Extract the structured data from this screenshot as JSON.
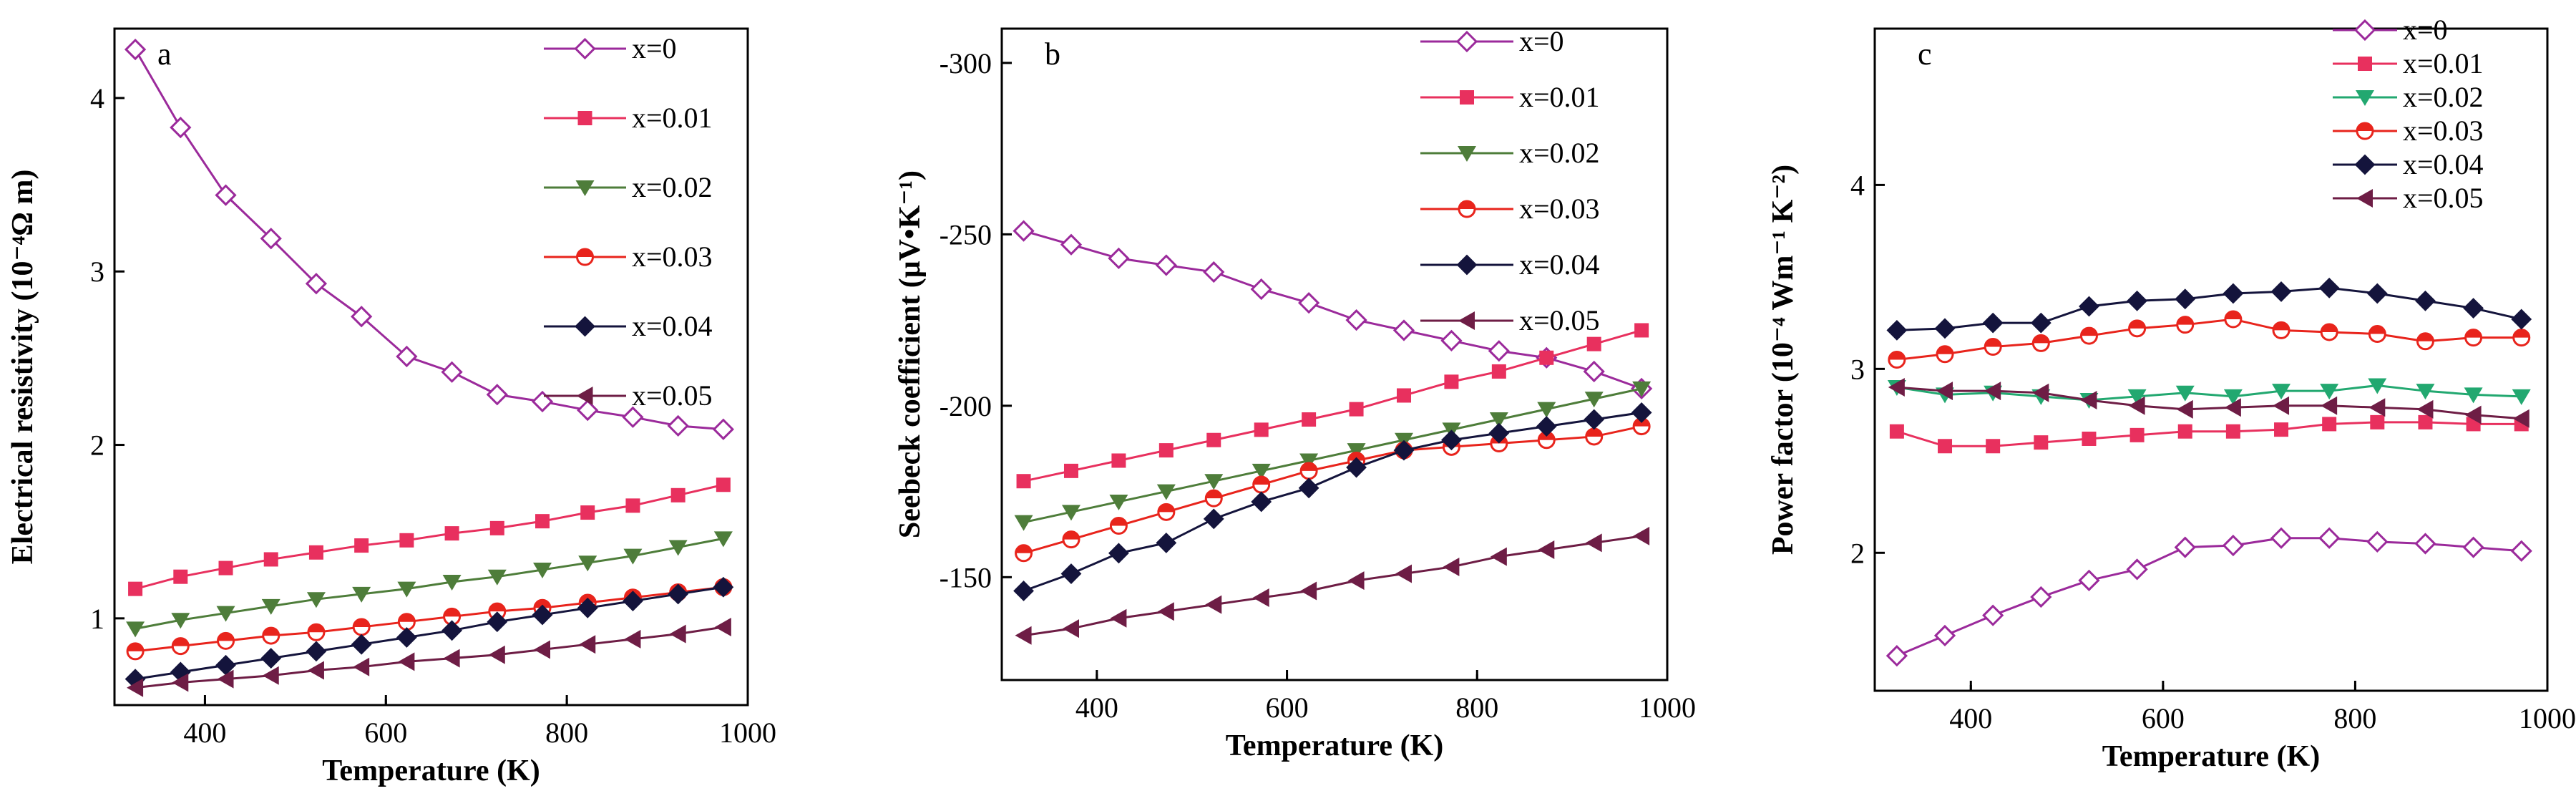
{
  "chart_data": [
    {
      "type": "line",
      "panel_label": "a",
      "title": "",
      "xlabel": "Temperature (K)",
      "ylabel": "Electrical resistivity (10⁻⁴Ω m)",
      "xlim": [
        300,
        1000
      ],
      "ylim": [
        0.5,
        4.4
      ],
      "y_reversed": false,
      "x_ticks": [
        400,
        600,
        800,
        1000
      ],
      "y_ticks": [
        1,
        2,
        3,
        4
      ],
      "legend_position": "top-right",
      "x": [
        323,
        373,
        423,
        473,
        523,
        573,
        623,
        673,
        723,
        773,
        823,
        873,
        923,
        973
      ],
      "series": [
        {
          "name": "x=0",
          "color": "#9b2a9b",
          "marker": "diamond-open",
          "values": [
            4.28,
            3.83,
            3.44,
            3.19,
            2.93,
            2.74,
            2.51,
            2.42,
            2.29,
            2.25,
            2.2,
            2.16,
            2.11,
            2.09
          ]
        },
        {
          "name": "x=0.01",
          "color": "#e8305e",
          "marker": "square",
          "values": [
            1.17,
            1.24,
            1.29,
            1.34,
            1.38,
            1.42,
            1.45,
            1.49,
            1.52,
            1.56,
            1.61,
            1.65,
            1.71,
            1.77
          ]
        },
        {
          "name": "x=0.02",
          "color": "#4e7d3a",
          "marker": "triangle-down",
          "values": [
            0.94,
            0.99,
            1.03,
            1.07,
            1.11,
            1.14,
            1.17,
            1.21,
            1.24,
            1.28,
            1.32,
            1.36,
            1.41,
            1.46
          ]
        },
        {
          "name": "x=0.03",
          "color": "#e8241c",
          "marker": "circle-half",
          "values": [
            0.81,
            0.84,
            0.87,
            0.9,
            0.92,
            0.95,
            0.98,
            1.01,
            1.04,
            1.06,
            1.09,
            1.12,
            1.15,
            1.18
          ]
        },
        {
          "name": "x=0.04",
          "color": "#14143c",
          "marker": "diamond",
          "values": [
            0.65,
            0.69,
            0.73,
            0.77,
            0.81,
            0.85,
            0.89,
            0.93,
            0.98,
            1.02,
            1.06,
            1.1,
            1.14,
            1.18
          ]
        },
        {
          "name": "x=0.05",
          "color": "#6e1d45",
          "marker": "triangle-left",
          "values": [
            0.6,
            0.63,
            0.65,
            0.67,
            0.7,
            0.72,
            0.75,
            0.77,
            0.79,
            0.82,
            0.85,
            0.88,
            0.91,
            0.95
          ]
        }
      ]
    },
    {
      "type": "line",
      "panel_label": "b",
      "title": "",
      "xlabel": "Temperature (K)",
      "ylabel": "Seebeck coefficient (μV•K⁻¹)",
      "xlim": [
        300,
        1000
      ],
      "ylim": [
        -310,
        -120
      ],
      "y_reversed": true,
      "x_ticks": [
        400,
        600,
        800,
        1000
      ],
      "y_ticks": [
        -300,
        -250,
        -200,
        -150
      ],
      "legend_position": "top-right",
      "x": [
        323,
        373,
        423,
        473,
        523,
        573,
        623,
        673,
        723,
        773,
        823,
        873,
        923,
        973
      ],
      "series": [
        {
          "name": "x=0",
          "color": "#9b2a9b",
          "marker": "diamond-open",
          "values": [
            -251,
            -247,
            -243,
            -241,
            -239,
            -234,
            -230,
            -225,
            -222,
            -219,
            -216,
            -214,
            -210,
            -205
          ]
        },
        {
          "name": "x=0.01",
          "color": "#e8305e",
          "marker": "square",
          "values": [
            -178,
            -181,
            -184,
            -187,
            -190,
            -193,
            -196,
            -199,
            -203,
            -207,
            -210,
            -214,
            -218,
            -222
          ]
        },
        {
          "name": "x=0.02",
          "color": "#4e7d3a",
          "marker": "triangle-down",
          "values": [
            -166,
            -169,
            -172,
            -175,
            -178,
            -181,
            -184,
            -187,
            -190,
            -193,
            -196,
            -199,
            -202,
            -205
          ]
        },
        {
          "name": "x=0.03",
          "color": "#e8241c",
          "marker": "circle-half",
          "values": [
            -157,
            -161,
            -165,
            -169,
            -173,
            -177,
            -181,
            -184,
            -187,
            -188,
            -189,
            -190,
            -191,
            -194
          ]
        },
        {
          "name": "x=0.04",
          "color": "#14143c",
          "marker": "diamond",
          "values": [
            -146,
            -151,
            -157,
            -160,
            -167,
            -172,
            -176,
            -182,
            -187,
            -190,
            -192,
            -194,
            -196,
            -198
          ]
        },
        {
          "name": "x=0.05",
          "color": "#6e1d45",
          "marker": "triangle-left",
          "values": [
            -133,
            -135,
            -138,
            -140,
            -142,
            -144,
            -146,
            -149,
            -151,
            -153,
            -156,
            -158,
            -160,
            -162
          ]
        }
      ]
    },
    {
      "type": "line",
      "panel_label": "c",
      "title": "",
      "xlabel": "Temperature (K)",
      "ylabel": "Power factor (10⁻⁴ Wm⁻¹ K⁻²)",
      "xlim": [
        300,
        1000
      ],
      "ylim": [
        1.25,
        4.85
      ],
      "y_reversed": false,
      "x_ticks": [
        400,
        600,
        800,
        1000
      ],
      "y_ticks": [
        2,
        3,
        4
      ],
      "legend_position": "top-right",
      "x": [
        323,
        373,
        423,
        473,
        523,
        573,
        623,
        673,
        723,
        773,
        823,
        873,
        923,
        973
      ],
      "series": [
        {
          "name": "x=0",
          "color": "#9b2a9b",
          "marker": "diamond-open",
          "values": [
            1.44,
            1.55,
            1.66,
            1.76,
            1.85,
            1.91,
            2.03,
            2.04,
            2.08,
            2.08,
            2.06,
            2.05,
            2.03,
            2.01
          ]
        },
        {
          "name": "x=0.01",
          "color": "#e8305e",
          "marker": "square",
          "values": [
            2.66,
            2.58,
            2.58,
            2.6,
            2.62,
            2.64,
            2.66,
            2.66,
            2.67,
            2.7,
            2.71,
            2.71,
            2.7,
            2.7
          ]
        },
        {
          "name": "x=0.02",
          "color": "#22a870",
          "marker": "triangle-down",
          "values": [
            2.9,
            2.86,
            2.87,
            2.85,
            2.83,
            2.85,
            2.87,
            2.85,
            2.88,
            2.88,
            2.91,
            2.88,
            2.86,
            2.85
          ]
        },
        {
          "name": "x=0.03",
          "color": "#e8241c",
          "marker": "circle-half",
          "values": [
            3.05,
            3.08,
            3.12,
            3.14,
            3.18,
            3.22,
            3.24,
            3.27,
            3.21,
            3.2,
            3.19,
            3.15,
            3.17,
            3.17
          ]
        },
        {
          "name": "x=0.04",
          "color": "#14143c",
          "marker": "diamond",
          "values": [
            3.21,
            3.22,
            3.25,
            3.25,
            3.34,
            3.37,
            3.38,
            3.41,
            3.42,
            3.44,
            3.41,
            3.37,
            3.33,
            3.27
          ]
        },
        {
          "name": "x=0.05",
          "color": "#6e1d45",
          "marker": "triangle-left",
          "values": [
            2.9,
            2.88,
            2.88,
            2.87,
            2.83,
            2.8,
            2.78,
            2.79,
            2.8,
            2.8,
            2.79,
            2.78,
            2.75,
            2.73
          ]
        }
      ]
    }
  ]
}
